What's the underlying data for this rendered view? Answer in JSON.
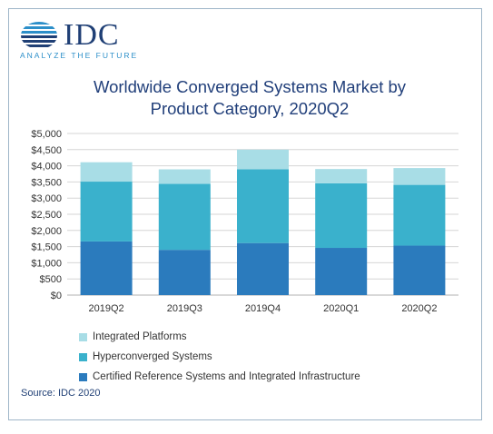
{
  "logo": {
    "text": "IDC",
    "tagline": "ANALYZE THE FUTURE",
    "icon": "striped-globe-icon",
    "color": "#1f3f75",
    "accent": "#2c8fc9"
  },
  "title_lines": [
    "Worldwide Converged Systems Market by",
    "Product Category, 2020Q2"
  ],
  "source": "Source: IDC 2020",
  "chart_data": {
    "type": "bar",
    "stacked": true,
    "title": "Worldwide Converged Systems Market by Product Category, 2020Q2",
    "categories": [
      "2019Q2",
      "2019Q3",
      "2019Q4",
      "2020Q1",
      "2020Q2"
    ],
    "series": [
      {
        "name": "Certified Reference Systems and Integrated Infrastructure",
        "color": "#2b7bbd",
        "values": [
          1660,
          1400,
          1610,
          1460,
          1530
        ]
      },
      {
        "name": "Hyperconverged Systems",
        "color": "#3ab1cc",
        "values": [
          1850,
          2040,
          2280,
          2000,
          1880
        ]
      },
      {
        "name": "Integrated Platforms",
        "color": "#a8dde6",
        "values": [
          600,
          450,
          610,
          440,
          520
        ]
      }
    ],
    "y_ticks": [
      "$0",
      "$500",
      "$1,000",
      "$1,500",
      "$2,000",
      "$2,500",
      "$3,000",
      "$3,500",
      "$4,000",
      "$4,500",
      "$5,000"
    ],
    "ylim": [
      0,
      5000
    ],
    "grid": true,
    "legend_position": "bottom"
  }
}
